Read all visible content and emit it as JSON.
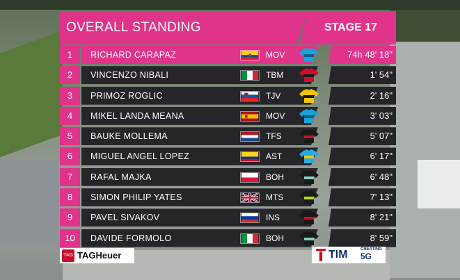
{
  "header": {
    "title": "OVERALL STANDING",
    "stage": "STAGE 17"
  },
  "colors": {
    "accent": "#e0338a",
    "row_dark": "#25252a"
  },
  "standings": [
    {
      "pos": "1",
      "name": "RICHARD CARAPAZ",
      "flag": "ecuador-flag",
      "team": "MOV",
      "jersey": "movistar-jersey-icon",
      "time": "74h 48' 18\""
    },
    {
      "pos": "2",
      "name": "VINCENZO NIBALI",
      "flag": "italy-flag",
      "team": "TBM",
      "jersey": "bahrain-merida-jersey-icon",
      "time": "1' 54\""
    },
    {
      "pos": "3",
      "name": "PRIMOZ ROGLIC",
      "flag": "slovenia-flag",
      "team": "TJV",
      "jersey": "jumbo-visma-jersey-icon",
      "time": "2' 16\""
    },
    {
      "pos": "4",
      "name": "MIKEL LANDA MEANA",
      "flag": "spain-flag",
      "team": "MOV",
      "jersey": "movistar-jersey-icon",
      "time": "3' 03\""
    },
    {
      "pos": "5",
      "name": "BAUKE MOLLEMA",
      "flag": "netherlands-flag",
      "team": "TFS",
      "jersey": "trek-segafredo-jersey-icon",
      "time": "5' 07\""
    },
    {
      "pos": "6",
      "name": "MIGUEL ANGEL LOPEZ",
      "flag": "colombia-flag",
      "team": "AST",
      "jersey": "astana-jersey-icon",
      "time": "6' 17\""
    },
    {
      "pos": "7",
      "name": "RAFAL MAJKA",
      "flag": "poland-flag",
      "team": "BOH",
      "jersey": "bora-hansgrohe-jersey-icon",
      "time": "6' 48\""
    },
    {
      "pos": "8",
      "name": "SIMON PHILIP YATES",
      "flag": "uk-flag",
      "team": "MTS",
      "jersey": "mitchelton-scott-jersey-icon",
      "time": "7' 13\""
    },
    {
      "pos": "9",
      "name": "PAVEL SIVAKOV",
      "flag": "russia-flag",
      "team": "INS",
      "jersey": "ineos-jersey-icon",
      "time": "8' 21\""
    },
    {
      "pos": "10",
      "name": "DAVIDE FORMOLO",
      "flag": "italy-flag",
      "team": "BOH",
      "jersey": "bora-hansgrohe-jersey-icon",
      "time": "8' 59\""
    }
  ],
  "sponsors": {
    "tag_shield": "TAG",
    "tag_label": "TAGHeuer",
    "tim_label": "TIM",
    "tim_creating": "CREATING",
    "tim_5g": "5G"
  }
}
